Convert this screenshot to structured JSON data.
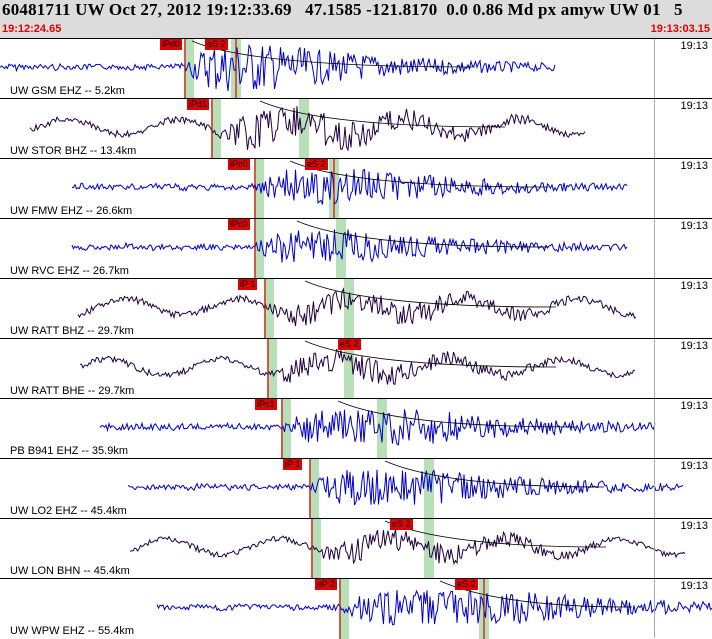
{
  "header": {
    "title": "60481711 UW Oct 27, 2012 19:12:33.69   47.1585 -121.8170  0.0 0.86 Md px amyw UW 01   5",
    "start_time": "19:12:24.65",
    "end_time": "19:13:03.15"
  },
  "colors": {
    "blue_trace": "#0000cc",
    "dark_trace": "#200040",
    "pick": "#e00000",
    "window": "#b8e0b8"
  },
  "traces": [
    {
      "label": "UW GSM EHZ -- 5.2km",
      "time": "19:13",
      "color": "blue",
      "picks": [
        "iPd0",
        "eS 2"
      ],
      "amp": "high"
    },
    {
      "label": "UW STOR BHZ -- 13.4km",
      "time": "19:13",
      "color": "dark",
      "picks": [
        "iPd1"
      ],
      "amp": "mid"
    },
    {
      "label": "UW FMW EHZ -- 26.6km",
      "time": "19:13",
      "color": "blue",
      "picks": [
        "iPc0",
        "eS 2"
      ],
      "amp": "mid"
    },
    {
      "label": "UW RVC EHZ -- 26.7km",
      "time": "19:13",
      "color": "blue",
      "picks": [
        "iPc0"
      ],
      "amp": "mid"
    },
    {
      "label": "UW RATT BHZ -- 29.7km",
      "time": "19:13",
      "color": "dark",
      "picks": [
        "iP 1"
      ],
      "amp": "low"
    },
    {
      "label": "UW RATT BHE -- 29.7km",
      "time": "19:13",
      "color": "dark",
      "picks": [
        "eS 2"
      ],
      "amp": "low"
    },
    {
      "label": "PB B941 EHZ -- 35.9km",
      "time": "19:13",
      "color": "blue",
      "picks": [
        "iPc1"
      ],
      "amp": "mid"
    },
    {
      "label": "UW LO2 EHZ -- 45.4km",
      "time": "19:13",
      "color": "blue",
      "picks": [
        "iP 1"
      ],
      "amp": "mid"
    },
    {
      "label": "UW LON BHN -- 45.4km",
      "time": "19:13",
      "color": "dark",
      "picks": [
        "eS 2"
      ],
      "amp": "low"
    },
    {
      "label": "UW WPW EHZ -- 55.4km",
      "time": "19:13",
      "color": "blue",
      "picks": [
        "eP 2",
        "eS 2"
      ],
      "amp": "mid"
    }
  ]
}
